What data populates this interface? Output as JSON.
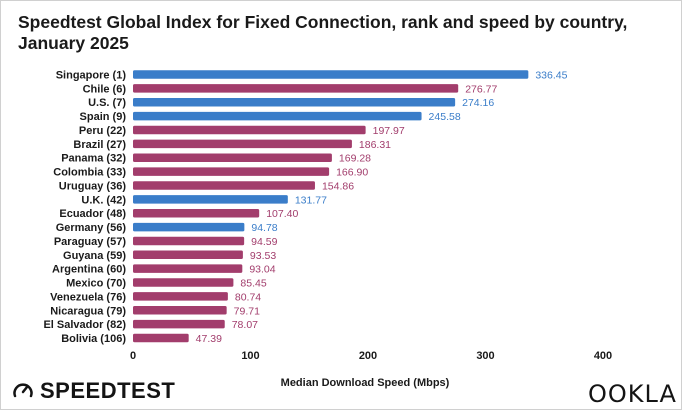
{
  "chart_data": {
    "type": "bar",
    "orientation": "horizontal",
    "title": "Speedtest Global Index for Fixed Connection, rank and speed by country, January 2025",
    "xlabel": "Median Download Speed (Mbps)",
    "ylabel": "",
    "xlim": [
      0,
      400
    ],
    "xticks": [
      "0",
      "100",
      "200",
      "300",
      "400"
    ],
    "categories": [
      "Singapore (1)",
      "Chile (6)",
      "U.S. (7)",
      "Spain (9)",
      "Peru (22)",
      "Brazil (27)",
      "Panama (32)",
      "Colombia (33)",
      "Uruguay (36)",
      "U.K. (42)",
      "Ecuador (48)",
      "Germany (56)",
      "Paraguay (57)",
      "Guyana (59)",
      "Argentina (60)",
      "Mexico (70)",
      "Venezuela (76)",
      "Nicaragua (79)",
      "El Salvador (82)",
      "Bolivia (106)"
    ],
    "values": [
      336.45,
      276.77,
      274.16,
      245.58,
      197.97,
      186.31,
      169.28,
      166.9,
      154.86,
      131.77,
      107.4,
      94.78,
      94.59,
      93.53,
      93.04,
      85.45,
      80.74,
      79.71,
      78.07,
      47.39
    ],
    "value_labels": [
      "336.45",
      "276.77",
      "274.16",
      "245.58",
      "197.97",
      "186.31",
      "169.28",
      "166.90",
      "154.86",
      "131.77",
      "107.40",
      "94.78",
      "94.59",
      "93.53",
      "93.04",
      "85.45",
      "80.74",
      "79.71",
      "78.07",
      "47.39"
    ],
    "groups": [
      "blue",
      "magenta",
      "blue",
      "blue",
      "magenta",
      "magenta",
      "magenta",
      "magenta",
      "magenta",
      "blue",
      "magenta",
      "blue",
      "magenta",
      "magenta",
      "magenta",
      "magenta",
      "magenta",
      "magenta",
      "magenta",
      "magenta"
    ],
    "colors": {
      "blue": "#3a7dc9",
      "magenta": "#a23d6c"
    }
  },
  "brand": {
    "left": "SPEEDTEST",
    "right": "OOKLA"
  }
}
